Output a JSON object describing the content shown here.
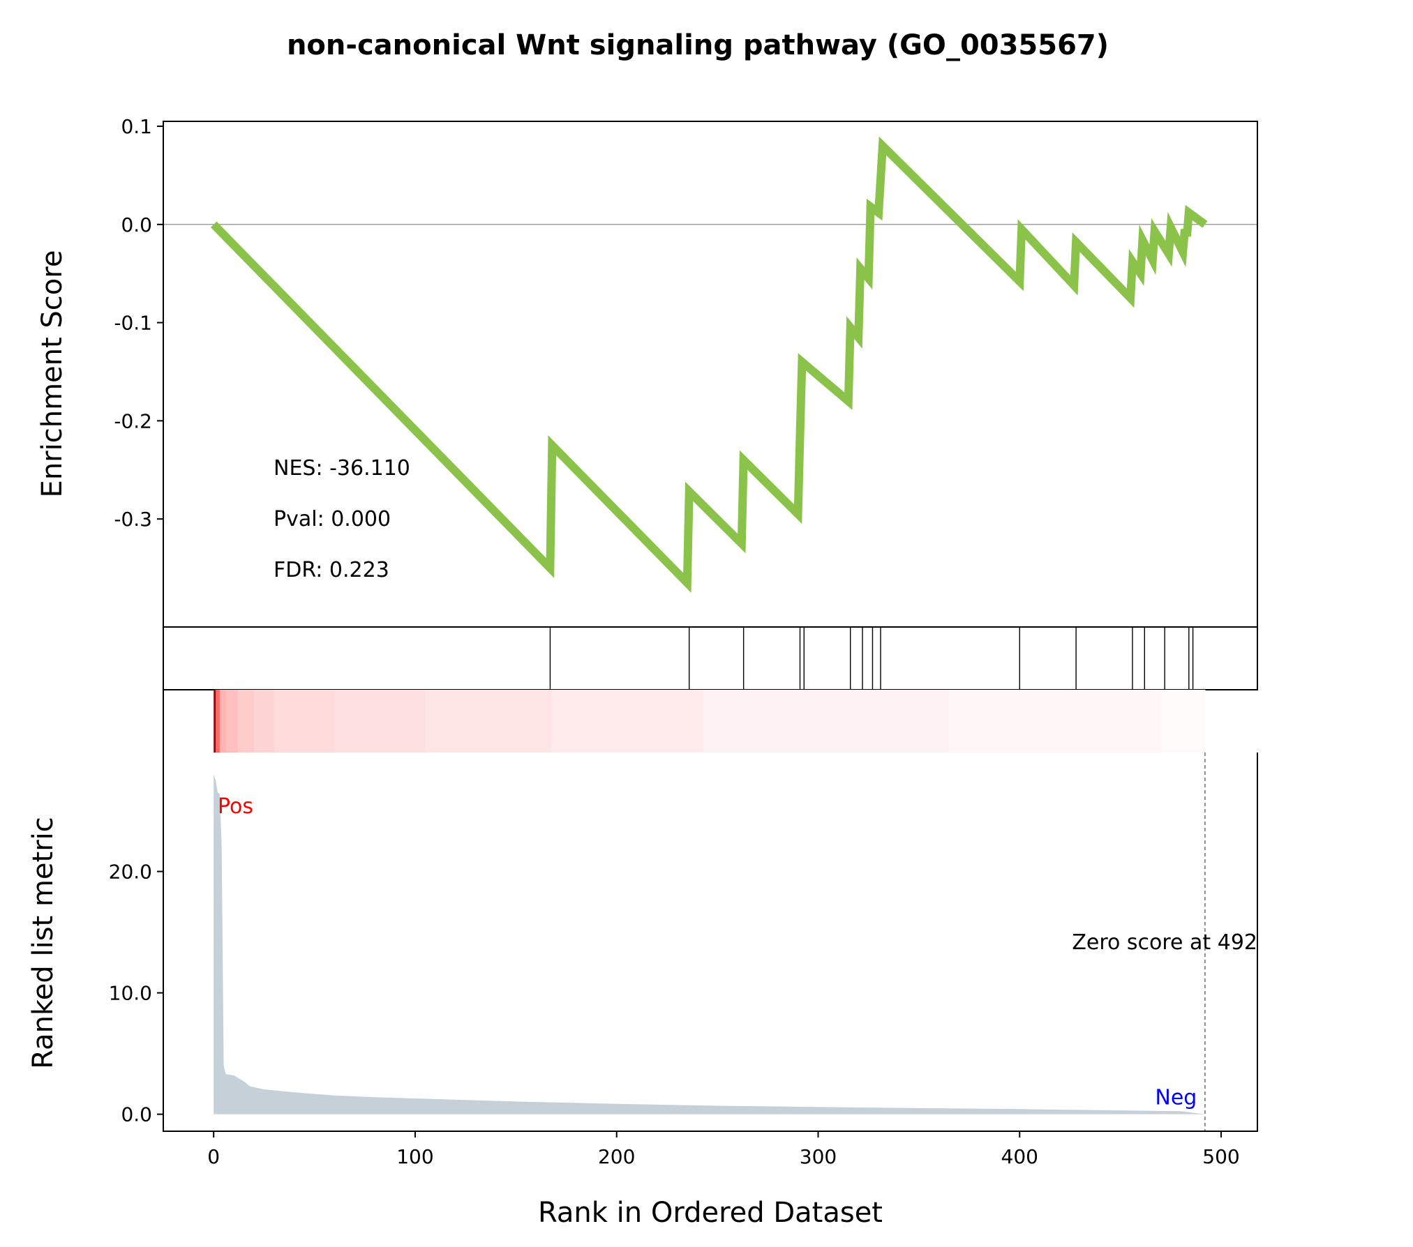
{
  "chart_data": {
    "type": "line",
    "title": "non-canonical Wnt signaling pathway (GO_0035567)",
    "enrichment": {
      "ylabel": "Enrichment Score",
      "ylim": [
        -0.41,
        0.105
      ],
      "yticks": [
        "0.1",
        "0.0",
        "-0.1",
        "-0.2",
        "-0.3"
      ],
      "ytick_values": [
        0.1,
        0.0,
        -0.1,
        -0.2,
        -0.3
      ],
      "line_color": "#8bc34a",
      "zero_line": true,
      "running_score": [
        [
          0,
          0.0
        ],
        [
          167,
          -0.35
        ],
        [
          168,
          -0.225
        ],
        [
          235,
          -0.365
        ],
        [
          236,
          -0.272
        ],
        [
          262,
          -0.325
        ],
        [
          263,
          -0.24
        ],
        [
          290,
          -0.295
        ],
        [
          291,
          -0.215
        ],
        [
          292,
          -0.14
        ],
        [
          315,
          -0.18
        ],
        [
          316,
          -0.105
        ],
        [
          320,
          -0.115
        ],
        [
          321,
          -0.045
        ],
        [
          325,
          -0.055
        ],
        [
          326,
          0.018
        ],
        [
          330,
          0.012
        ],
        [
          332,
          0.08
        ],
        [
          400,
          -0.058
        ],
        [
          401,
          -0.005
        ],
        [
          427,
          -0.062
        ],
        [
          428,
          -0.018
        ],
        [
          455,
          -0.075
        ],
        [
          456,
          -0.038
        ],
        [
          460,
          -0.05
        ],
        [
          461,
          -0.016
        ],
        [
          466,
          -0.036
        ],
        [
          467,
          -0.007
        ],
        [
          474,
          -0.03
        ],
        [
          475,
          -0.003
        ],
        [
          481,
          -0.028
        ],
        [
          482,
          -0.005
        ],
        [
          483,
          -0.012
        ],
        [
          484,
          0.012
        ],
        [
          492,
          0.0
        ]
      ],
      "stats": [
        "NES: -36.110",
        "Pval: 0.000",
        "FDR: 0.223"
      ]
    },
    "hits": [
      167,
      236,
      263,
      291,
      293,
      316,
      322,
      327,
      331,
      400,
      428,
      456,
      462,
      472,
      484,
      486
    ],
    "ranked_metric": {
      "xlabel": "Rank in Ordered Dataset",
      "ylabel": "Ranked list metric",
      "xlim": [
        -25,
        518
      ],
      "xticks": [
        "0",
        "100",
        "200",
        "300",
        "400",
        "500"
      ],
      "xtick_values": [
        0,
        100,
        200,
        300,
        400,
        500
      ],
      "ylim": [
        -1.4,
        29.8
      ],
      "yticks": [
        "0.0",
        "10.0",
        "20.0"
      ],
      "ytick_values": [
        0,
        10,
        20
      ],
      "fill_color": "#c5d0d9",
      "profile": [
        [
          0,
          28.0
        ],
        [
          1,
          27.5
        ],
        [
          2,
          26.5
        ],
        [
          3,
          26.4
        ],
        [
          4,
          22.0
        ],
        [
          5,
          4.0
        ],
        [
          6,
          3.3
        ],
        [
          10,
          3.2
        ],
        [
          12,
          3.0
        ],
        [
          15,
          2.7
        ],
        [
          18,
          2.3
        ],
        [
          25,
          2.05
        ],
        [
          40,
          1.8
        ],
        [
          60,
          1.55
        ],
        [
          80,
          1.4
        ],
        [
          100,
          1.3
        ],
        [
          150,
          1.05
        ],
        [
          200,
          0.85
        ],
        [
          250,
          0.7
        ],
        [
          300,
          0.6
        ],
        [
          350,
          0.5
        ],
        [
          400,
          0.42
        ],
        [
          450,
          0.32
        ],
        [
          480,
          0.25
        ],
        [
          492,
          0.0
        ]
      ],
      "pos_label": "Pos",
      "neg_label": "Neg",
      "zero_score_label": "Zero score at 492",
      "zero_score_rank": 492
    },
    "heatmap": {
      "colormap": "white-to-red",
      "segments": [
        [
          0,
          1,
          1.0
        ],
        [
          1,
          3,
          0.6
        ],
        [
          3,
          6,
          0.3
        ],
        [
          6,
          12,
          0.25
        ],
        [
          12,
          20,
          0.2
        ],
        [
          20,
          30,
          0.17
        ],
        [
          30,
          60,
          0.14
        ],
        [
          60,
          105,
          0.12
        ],
        [
          105,
          168,
          0.1
        ],
        [
          168,
          243,
          0.08
        ],
        [
          243,
          365,
          0.05
        ],
        [
          365,
          470,
          0.035
        ],
        [
          470,
          492,
          0.015
        ]
      ]
    }
  }
}
